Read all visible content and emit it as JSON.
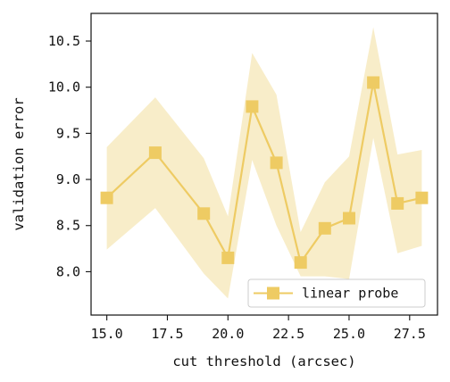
{
  "chart_data": {
    "type": "line",
    "xlabel": "cut threshold (arcsec)",
    "ylabel": "validation error",
    "xlim": [
      14.35,
      28.65
    ],
    "ylim": [
      7.53,
      10.8
    ],
    "xticks": [
      15.0,
      17.5,
      20.0,
      22.5,
      25.0,
      27.5
    ],
    "xtick_labels": [
      "15.0",
      "17.5",
      "20.0",
      "22.5",
      "25.0",
      "27.5"
    ],
    "yticks": [
      8.0,
      8.5,
      9.0,
      9.5,
      10.0,
      10.5
    ],
    "ytick_labels": [
      "8.0",
      "8.5",
      "9.0",
      "9.5",
      "10.0",
      "10.5"
    ],
    "grid": false,
    "legend_position": "lower-right",
    "colors": {
      "line": "#EECB63",
      "band": "#F5E3AC",
      "axes": "#111111"
    },
    "series": [
      {
        "name": "linear probe",
        "marker": "square",
        "x": [
          15,
          17,
          19,
          20,
          21,
          22,
          23,
          24,
          25,
          26,
          27,
          28
        ],
        "y": [
          8.8,
          9.29,
          8.63,
          8.15,
          9.79,
          9.18,
          8.1,
          8.47,
          8.58,
          10.05,
          8.74,
          8.8
        ],
        "lower": [
          8.24,
          8.69,
          7.98,
          7.71,
          9.21,
          8.5,
          7.95,
          7.95,
          7.92,
          9.45,
          8.2,
          8.28
        ],
        "upper": [
          9.35,
          9.89,
          9.23,
          8.6,
          10.37,
          9.92,
          8.43,
          8.97,
          9.25,
          10.65,
          9.27,
          9.32
        ]
      }
    ]
  }
}
